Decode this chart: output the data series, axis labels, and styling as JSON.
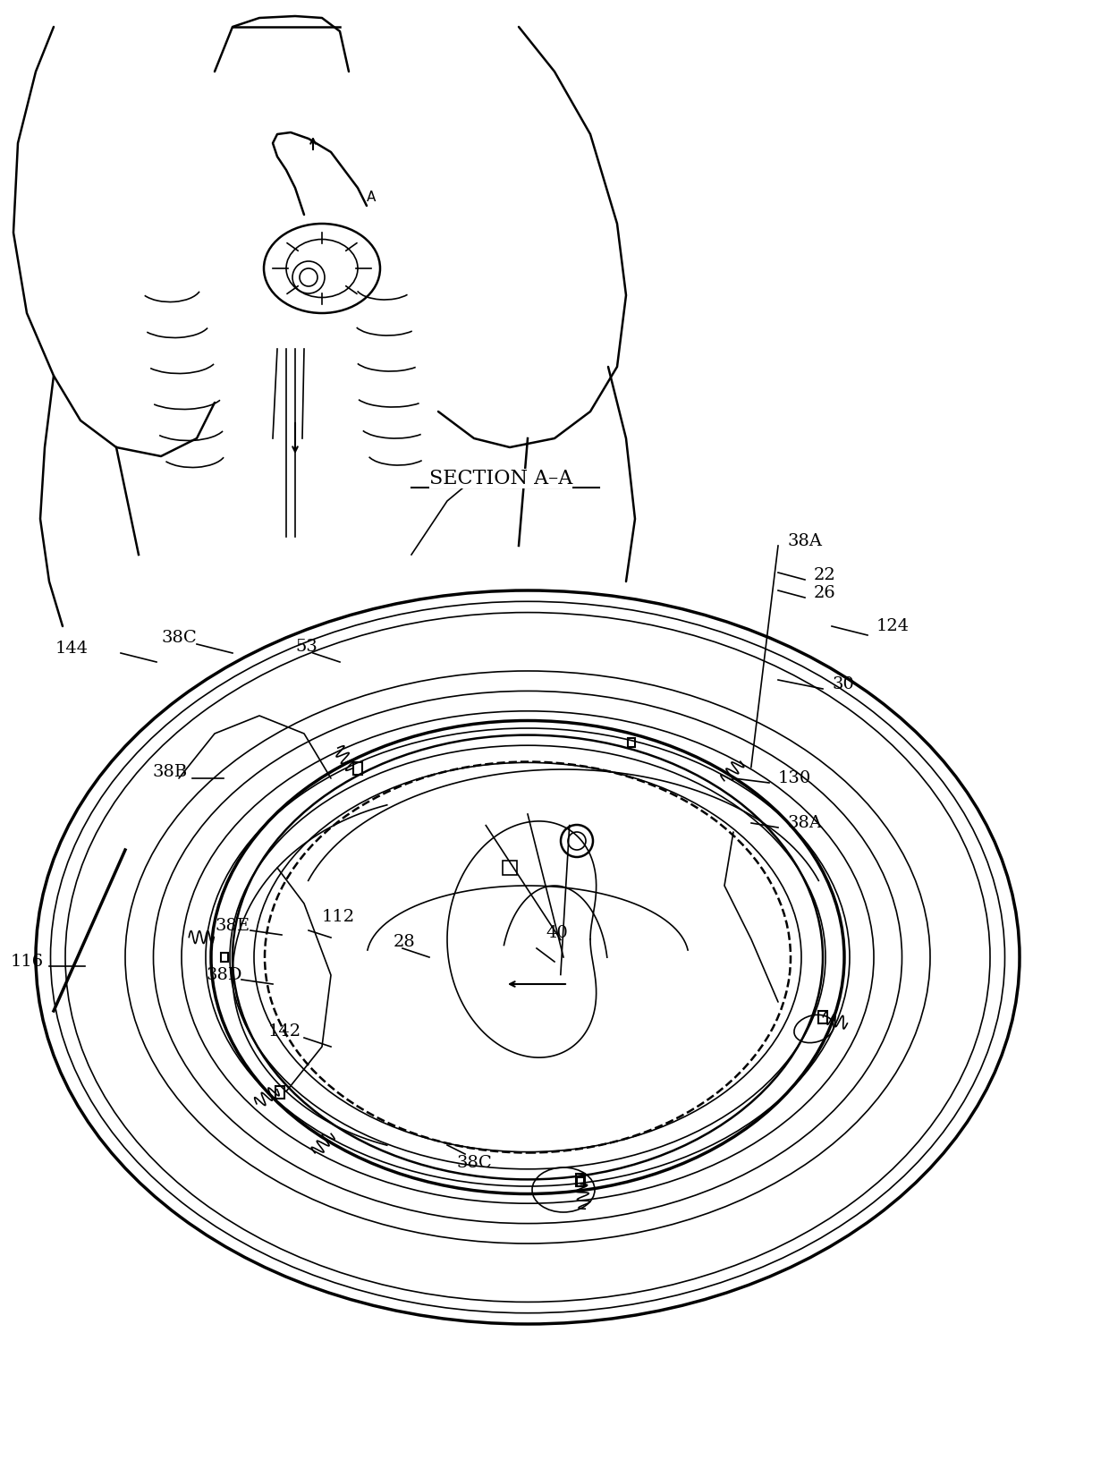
{
  "background_color": "#ffffff",
  "line_color": "#000000",
  "figure_width": 12.4,
  "figure_height": 16.51,
  "labels": {
    "section": "SECTION A–A",
    "38A_top": "38A",
    "38A_right": "38A",
    "38B": "38B",
    "38C_top": "38C",
    "38C_bot": "38C",
    "38D": "38D",
    "38E": "38E",
    "22": "22",
    "26": "26",
    "28": "28",
    "30": "30",
    "40": "40",
    "53": "53",
    "112": "112",
    "116": "116",
    "124": "124",
    "130": "130",
    "142": "142",
    "144": "144"
  }
}
